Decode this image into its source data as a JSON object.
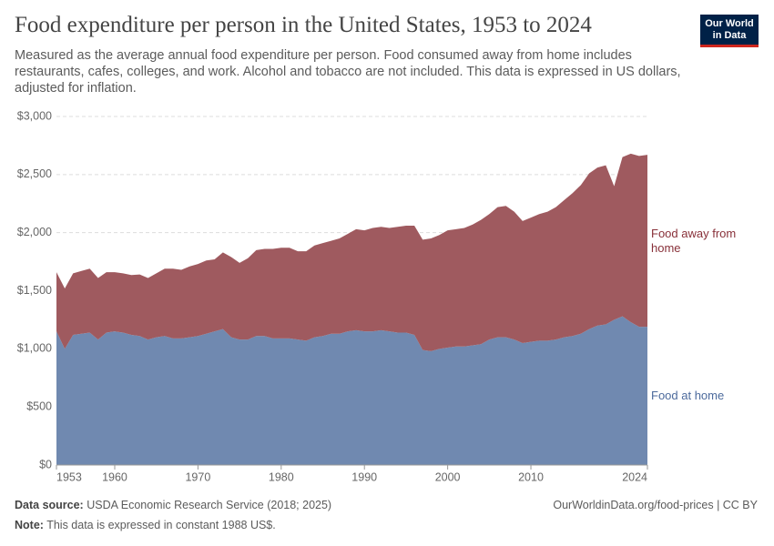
{
  "chart_data": {
    "type": "stacked-area",
    "title": "Food expenditure per person in the United States, 1953 to 2024",
    "subtitle": "Measured as the average annual food expenditure per person. Food consumed away from home includes restaurants, cafes, colleges, and work. Alcohol and tobacco are not included. This data is expressed in US dollars, adjusted for inflation.",
    "logo": [
      "Our World",
      "in Data"
    ],
    "source_label": "Data source:",
    "source": "USDA Economic Research Service (2018; 2025)",
    "url": "OurWorldinData.org/food-prices | CC BY",
    "note_label": "Note:",
    "note": "This data is expressed in constant 1988 US$.",
    "x": [
      1953,
      1954,
      1955,
      1956,
      1957,
      1958,
      1959,
      1960,
      1961,
      1962,
      1963,
      1964,
      1965,
      1966,
      1967,
      1968,
      1969,
      1970,
      1971,
      1972,
      1973,
      1974,
      1975,
      1976,
      1977,
      1978,
      1979,
      1980,
      1981,
      1982,
      1983,
      1984,
      1985,
      1986,
      1987,
      1988,
      1989,
      1990,
      1991,
      1992,
      1993,
      1994,
      1995,
      1996,
      1997,
      1998,
      1999,
      2000,
      2001,
      2002,
      2003,
      2004,
      2005,
      2006,
      2007,
      2008,
      2009,
      2010,
      2011,
      2012,
      2013,
      2014,
      2015,
      2016,
      2017,
      2018,
      2019,
      2020,
      2021,
      2022,
      2023,
      2024
    ],
    "series": [
      {
        "name": "Food at home",
        "color": "#7089b0",
        "label_color": "#4c6a9c",
        "values": [
          1150,
          1000,
          1120,
          1130,
          1140,
          1080,
          1140,
          1150,
          1140,
          1120,
          1110,
          1080,
          1100,
          1110,
          1090,
          1090,
          1100,
          1110,
          1130,
          1150,
          1170,
          1100,
          1080,
          1080,
          1110,
          1110,
          1090,
          1090,
          1090,
          1080,
          1070,
          1100,
          1110,
          1130,
          1130,
          1150,
          1160,
          1150,
          1150,
          1160,
          1150,
          1140,
          1140,
          1120,
          990,
          980,
          1000,
          1010,
          1020,
          1020,
          1030,
          1040,
          1080,
          1100,
          1100,
          1080,
          1050,
          1060,
          1070,
          1070,
          1080,
          1100,
          1110,
          1130,
          1170,
          1200,
          1210,
          1250,
          1280,
          1230,
          1190,
          1190
        ]
      },
      {
        "name": "Food away from home",
        "color": "#9f5a5f",
        "label_color": "#883039",
        "values": [
          510,
          520,
          530,
          540,
          550,
          530,
          520,
          510,
          510,
          515,
          530,
          530,
          550,
          580,
          600,
          590,
          610,
          620,
          630,
          620,
          660,
          690,
          660,
          700,
          740,
          750,
          770,
          780,
          780,
          760,
          770,
          790,
          800,
          800,
          820,
          840,
          870,
          870,
          890,
          890,
          890,
          910,
          920,
          940,
          950,
          970,
          980,
          1010,
          1010,
          1020,
          1040,
          1070,
          1080,
          1120,
          1130,
          1100,
          1050,
          1070,
          1090,
          1110,
          1140,
          1180,
          1230,
          1280,
          1340,
          1360,
          1370,
          1150,
          1370,
          1450,
          1470,
          1480
        ]
      }
    ],
    "xlim": [
      1953,
      2024
    ],
    "xticks": [
      1953,
      1960,
      1970,
      1980,
      1990,
      2000,
      2010,
      2024
    ],
    "ylim": [
      0,
      3000
    ],
    "yticks": [
      {
        "value": 0,
        "label": "$0"
      },
      {
        "value": 500,
        "label": "$500"
      },
      {
        "value": 1000,
        "label": "$1,000"
      },
      {
        "value": 1500,
        "label": "$1,500"
      },
      {
        "value": 2000,
        "label": "$2,000"
      },
      {
        "value": 2500,
        "label": "$2,500"
      },
      {
        "value": 3000,
        "label": "$3,000"
      }
    ],
    "grid": true
  }
}
